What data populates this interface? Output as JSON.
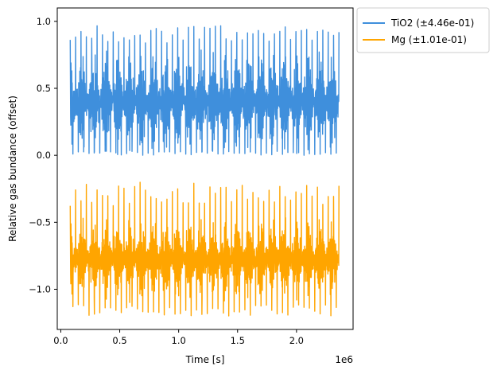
{
  "chart_data": {
    "type": "line",
    "title": "",
    "xlabel": "Time [s]",
    "ylabel": "Relative gas bundance (offset)",
    "x_offset_label": "1e6",
    "xlim": [
      -0.03,
      2.48
    ],
    "ylim": [
      -1.3,
      1.1
    ],
    "x_ticks": [
      {
        "value": 0.0,
        "label": "0.0"
      },
      {
        "value": 0.5,
        "label": "0.5"
      },
      {
        "value": 1.0,
        "label": "1.0"
      },
      {
        "value": 1.5,
        "label": "1.5"
      },
      {
        "value": 2.0,
        "label": "2.0"
      }
    ],
    "y_ticks": [
      {
        "value": 1.0,
        "label": "1.0"
      },
      {
        "value": 0.5,
        "label": "0.5"
      },
      {
        "value": 0.0,
        "label": "0.0"
      },
      {
        "value": -0.5,
        "label": "−0.5"
      },
      {
        "value": -1.0,
        "label": "−1.0"
      }
    ],
    "grid": false,
    "legend_position": "outside-top-right",
    "series": [
      {
        "name": "TiO2 (±4.46e-01)",
        "color": "#3f8fdc",
        "x_start": 0.08,
        "x_end": 2.36,
        "period": 0.101,
        "baseline": 0.38,
        "upper_peak": 0.97,
        "lower_peak": 0.0,
        "typical_upper": 0.75,
        "typical_lower": 0.05
      },
      {
        "name": "Mg (±1.01e-01)",
        "color": "#ffa500",
        "x_start": 0.08,
        "x_end": 2.36,
        "period": 0.101,
        "baseline": -0.82,
        "upper_peak": -0.2,
        "lower_peak": -1.2,
        "typical_upper": -0.5,
        "typical_lower": -1.05
      }
    ]
  }
}
